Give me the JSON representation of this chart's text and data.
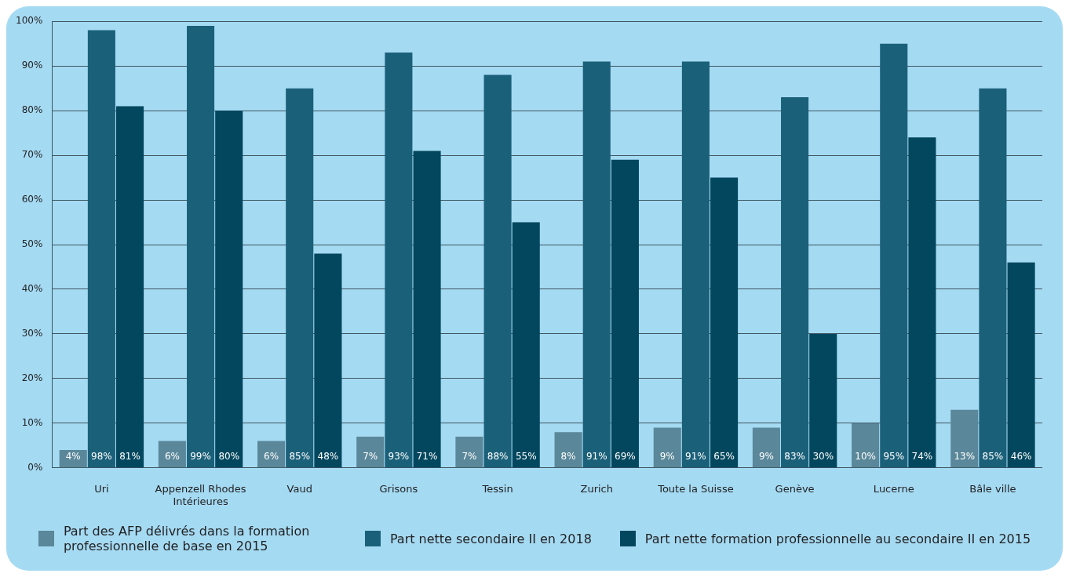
{
  "chart_data": {
    "type": "bar",
    "categories": [
      "Uri",
      "Appenzell Rhodes Intérieures",
      "Vaud",
      "Grisons",
      "Tessin",
      "Zurich",
      "Toute la Suisse",
      "Genève",
      "Lucerne",
      "Bâle ville"
    ],
    "series": [
      {
        "name": "Part des AFP délivrés dans la formation professionnelle de base en 2015",
        "color": "#5a8799",
        "values": [
          4,
          6,
          6,
          7,
          7,
          8,
          9,
          9,
          10,
          13
        ],
        "value_labels": [
          "4%",
          "6%",
          "6%",
          "7%",
          "7%",
          "8%",
          "9%",
          "9%",
          "10%",
          "13%"
        ]
      },
      {
        "name": "Part nette secondaire II en 2018",
        "color": "#1b6079",
        "values": [
          98,
          99,
          85,
          93,
          88,
          91,
          91,
          83,
          95,
          85
        ],
        "value_labels": [
          "98%",
          "99%",
          "85%",
          "93%",
          "88%",
          "91%",
          "91%",
          "83%",
          "95%",
          "85%"
        ]
      },
      {
        "name": "Part nette formation professionnelle au secondaire II en 2015",
        "color": "#02475e",
        "values": [
          81,
          80,
          48,
          71,
          55,
          69,
          65,
          30,
          74,
          46
        ],
        "value_labels": [
          "81%",
          "80%",
          "48%",
          "71%",
          "55%",
          "69%",
          "65%",
          "30%",
          "74%",
          "46%"
        ]
      }
    ],
    "ylim": [
      0,
      100
    ],
    "yticks": [
      {
        "value": 0,
        "label": "0%"
      },
      {
        "value": 10,
        "label": "10%"
      },
      {
        "value": 20,
        "label": "20%"
      },
      {
        "value": 30,
        "label": "30%"
      },
      {
        "value": 40,
        "label": "40%"
      },
      {
        "value": 50,
        "label": "50%"
      },
      {
        "value": 60,
        "label": "60%"
      },
      {
        "value": 70,
        "label": "70%"
      },
      {
        "value": 80,
        "label": "80%"
      },
      {
        "value": 90,
        "label": "90%"
      },
      {
        "value": 100,
        "label": "100%"
      }
    ],
    "grid": "y",
    "legend": "bottom"
  }
}
